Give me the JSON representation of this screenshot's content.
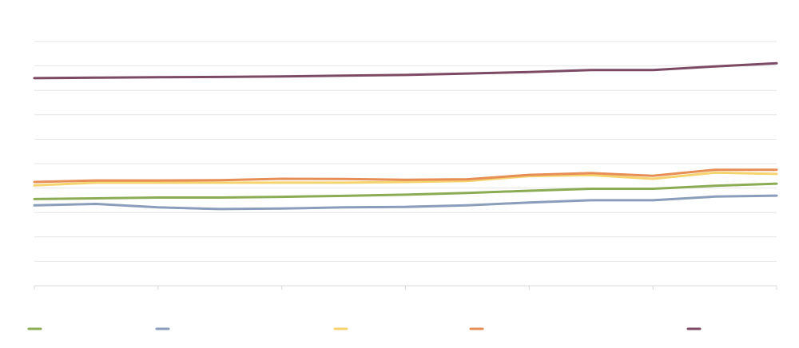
{
  "chart_data": {
    "type": "line",
    "title": "",
    "xlabel": "",
    "ylabel": "",
    "x": [
      0,
      1,
      2,
      3,
      4,
      5,
      6,
      7,
      8,
      9,
      10,
      11,
      12
    ],
    "ylim": [
      0,
      100
    ],
    "grid": true,
    "legend_position": "bottom",
    "series": [
      {
        "color": "#8bac54",
        "values": [
          35.5,
          35.8,
          36.1,
          36.1,
          36.4,
          36.8,
          37.3,
          38.0,
          38.9,
          39.7,
          39.7,
          40.9,
          41.8
        ]
      },
      {
        "color": "#8a9dba",
        "values": [
          32.9,
          33.5,
          32.1,
          31.4,
          31.6,
          32.1,
          32.3,
          32.9,
          34.1,
          35.0,
          35.0,
          36.5,
          36.9
        ]
      },
      {
        "color": "#f5d36e",
        "values": [
          41.1,
          42.2,
          42.2,
          42.2,
          42.2,
          42.2,
          42.5,
          42.9,
          44.9,
          45.3,
          43.8,
          46.3,
          45.8
        ]
      },
      {
        "color": "#e68e55",
        "values": [
          42.5,
          43.1,
          43.1,
          43.2,
          43.8,
          43.7,
          43.4,
          43.6,
          45.4,
          46.1,
          45.0,
          47.5,
          47.5
        ]
      },
      {
        "color": "#7d4a64",
        "values": [
          85.0,
          85.2,
          85.4,
          85.5,
          85.7,
          86.0,
          86.3,
          86.9,
          87.5,
          88.3,
          88.3,
          89.8,
          91.1
        ]
      }
    ],
    "legend": [
      {
        "label": "",
        "color": "#8bac54"
      },
      {
        "label": "",
        "color": "#8a9dba"
      },
      {
        "label": "",
        "color": "#f5d36e"
      },
      {
        "label": "",
        "color": "#e68e55"
      },
      {
        "label": "",
        "color": "#7d4a64"
      }
    ]
  }
}
